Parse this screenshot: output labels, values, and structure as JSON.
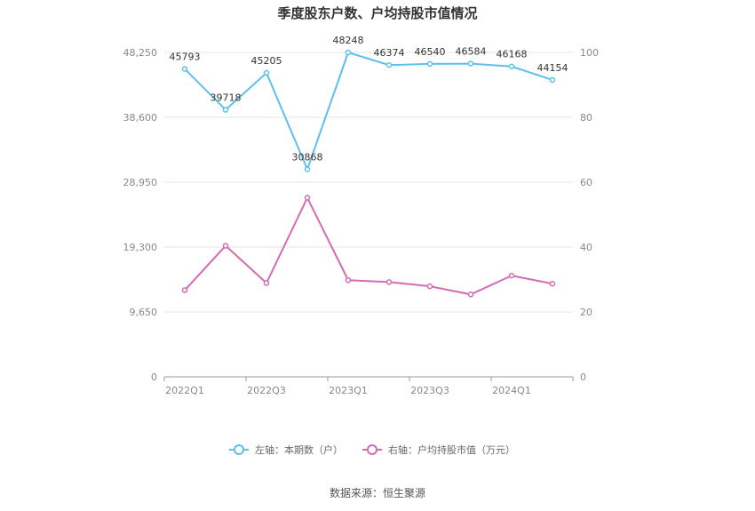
{
  "chart_data": {
    "type": "line",
    "title": "季度股东户数、户均持股市值情况",
    "categories": [
      "2022Q1",
      "2022Q2",
      "2022Q3",
      "2022Q4",
      "2023Q1",
      "2023Q2",
      "2023Q3",
      "2023Q4",
      "2024Q1",
      "2024Q2"
    ],
    "x_tick_labels": [
      "2022Q1",
      "2022Q3",
      "2023Q1",
      "2023Q3",
      "2024Q1"
    ],
    "left_axis": {
      "ylim": [
        0,
        48250
      ],
      "ticks": [
        "0",
        "9,650",
        "19,300",
        "28,950",
        "38,600",
        "48,250"
      ]
    },
    "right_axis": {
      "ylim": [
        0,
        100
      ],
      "ticks": [
        "0",
        "20",
        "40",
        "60",
        "80",
        "100"
      ]
    },
    "series": [
      {
        "name": "左轴：本期数（户）",
        "axis": "left",
        "color": "#5bc0eb",
        "values": [
          45793,
          39718,
          45205,
          30868,
          48248,
          46374,
          46540,
          46584,
          46168,
          44154
        ],
        "labels": [
          "45793",
          "39718",
          "45205",
          "30868",
          "48248",
          "46374",
          "46540",
          "46584",
          "46168",
          "44154"
        ]
      },
      {
        "name": "右轴：户均持股市值（万元）",
        "axis": "right",
        "color": "#d46bb3",
        "values": [
          26.7,
          40.4,
          28.9,
          55.2,
          29.8,
          29.2,
          27.9,
          25.4,
          31.2,
          28.7
        ]
      }
    ],
    "grid": true,
    "legend_position": "bottom"
  },
  "source": "数据来源：恒生聚源"
}
